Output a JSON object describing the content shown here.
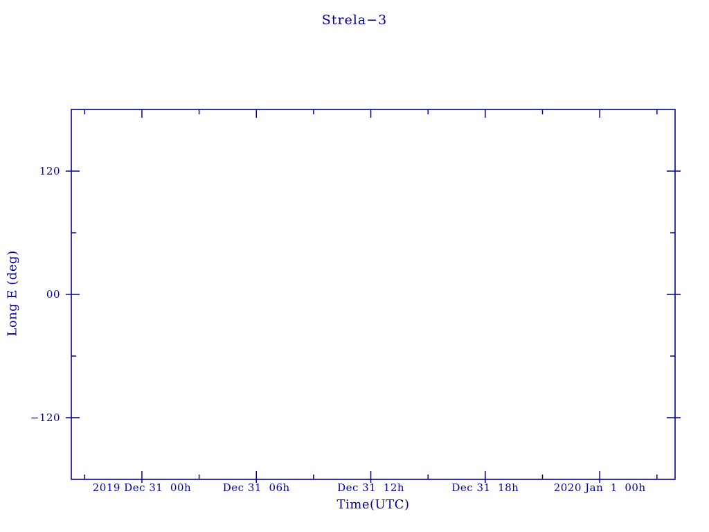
{
  "chart_data": {
    "type": "line",
    "title": "Strela−3",
    "xlabel": "Time(UTC)",
    "ylabel": "Long E (deg)",
    "grid": false,
    "legend": "none",
    "background": "#ffffff",
    "axis_color": "#000099",
    "x_axis": {
      "xlim_hours": [
        -3.7,
        27.95
      ],
      "major_ticks": [
        {
          "hours": 0,
          "label": "2019 Dec 31  00h"
        },
        {
          "hours": 6,
          "label": "Dec 31  06h"
        },
        {
          "hours": 12,
          "label": "Dec 31  12h"
        },
        {
          "hours": 18,
          "label": "Dec 31  18h"
        },
        {
          "hours": 24,
          "label": "2020 Jan  1  00h"
        }
      ],
      "minor_ticks_hours": [
        -3,
        3,
        9,
        15,
        21,
        27
      ]
    },
    "y_axis": {
      "ylim": [
        -180,
        180
      ],
      "major_ticks": [
        {
          "value": 120,
          "label": "120"
        },
        {
          "value": 0,
          "label": "00"
        },
        {
          "value": -120,
          "label": "−120"
        }
      ],
      "minor_ticks": [
        -60,
        60
      ]
    },
    "series": []
  }
}
